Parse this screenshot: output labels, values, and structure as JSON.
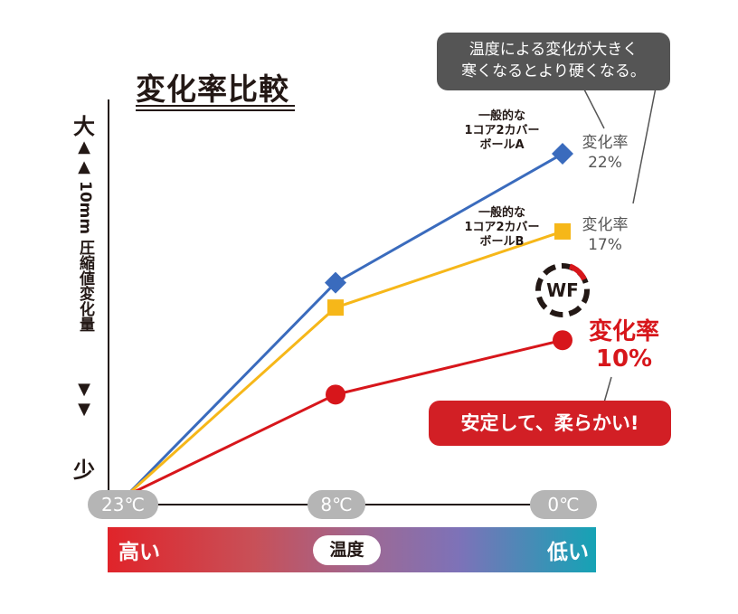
{
  "chart_data": {
    "type": "line",
    "title": "変化率比較",
    "ylabel": "10mm 圧縮値変化量",
    "y_top_label": "大",
    "y_bottom_label": "少",
    "categories": [
      "23℃",
      "8℃",
      "0℃"
    ],
    "xlabel": "温度",
    "x_band_left": "高い",
    "x_band_right": "低い",
    "grid": false,
    "series": [
      {
        "name_lines": [
          "一般的な",
          "1コア2カバー",
          "ボールA"
        ],
        "values": [
          0,
          13.7,
          22
        ],
        "color": "#3a6bbd",
        "marker": "diamond",
        "rate_label": "変化率",
        "rate_value": "22%"
      },
      {
        "name_lines": [
          "一般的な",
          "1コア2カバー",
          "ボールB"
        ],
        "values": [
          0,
          12.1,
          17
        ],
        "color": "#f6b719",
        "marker": "square",
        "rate_label": "変化率",
        "rate_value": "17%"
      },
      {
        "name_lines": [],
        "values": [
          0,
          6.5,
          10
        ],
        "color": "#d7161b",
        "marker": "circle",
        "rate_label": "変化率",
        "rate_value": "10%"
      }
    ],
    "annotations": {
      "gray_callout": [
        "温度による変化が大きく",
        "寒くなるとより硬くなる。"
      ],
      "red_callout": "安定して、柔らかい!"
    },
    "logo_text": "WF"
  }
}
